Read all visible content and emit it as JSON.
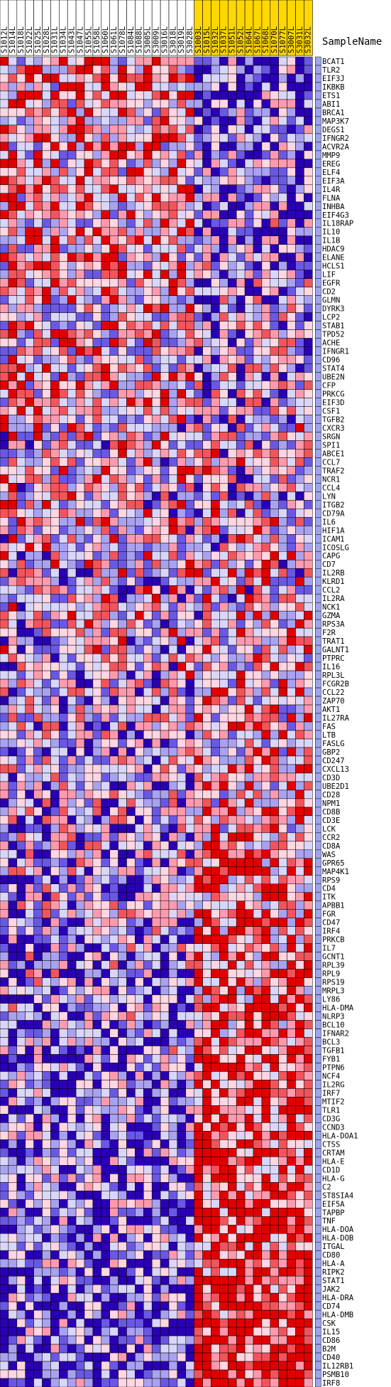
{
  "chart_data": {
    "type": "heatmap",
    "corner_label": "SampleName",
    "columns": [
      {
        "name": "S1012L",
        "group": "white"
      },
      {
        "name": "S1014L",
        "group": "white"
      },
      {
        "name": "S1018L",
        "group": "white"
      },
      {
        "name": "S1022L",
        "group": "white"
      },
      {
        "name": "S1025L",
        "group": "white"
      },
      {
        "name": "S1028L",
        "group": "white"
      },
      {
        "name": "S1031L",
        "group": "white"
      },
      {
        "name": "S1034L",
        "group": "white"
      },
      {
        "name": "S1043L",
        "group": "white"
      },
      {
        "name": "S1047L",
        "group": "white"
      },
      {
        "name": "S1055L",
        "group": "white"
      },
      {
        "name": "S1058L",
        "group": "white"
      },
      {
        "name": "S1060L",
        "group": "white"
      },
      {
        "name": "S1061L",
        "group": "white"
      },
      {
        "name": "S1078L",
        "group": "white"
      },
      {
        "name": "S1084L",
        "group": "white"
      },
      {
        "name": "S1088L",
        "group": "white"
      },
      {
        "name": "S3005L",
        "group": "white"
      },
      {
        "name": "S3009L",
        "group": "white"
      },
      {
        "name": "S3016L",
        "group": "white"
      },
      {
        "name": "S3018L",
        "group": "white"
      },
      {
        "name": "S3019L",
        "group": "white"
      },
      {
        "name": "S3028L",
        "group": "white"
      },
      {
        "name": "S1003L",
        "group": "gold"
      },
      {
        "name": "S1015L",
        "group": "gold"
      },
      {
        "name": "S1032L",
        "group": "gold"
      },
      {
        "name": "S1037L",
        "group": "gold"
      },
      {
        "name": "S1051L",
        "group": "gold"
      },
      {
        "name": "S1052L",
        "group": "gold"
      },
      {
        "name": "S1064L",
        "group": "gold"
      },
      {
        "name": "S1067L",
        "group": "gold"
      },
      {
        "name": "S1068L",
        "group": "gold"
      },
      {
        "name": "S1070L",
        "group": "gold"
      },
      {
        "name": "S1077L",
        "group": "gold"
      },
      {
        "name": "S3007L",
        "group": "gold"
      },
      {
        "name": "S3031L",
        "group": "gold"
      },
      {
        "name": "S3032L",
        "group": "gold"
      }
    ],
    "rows": [
      "BCAT1",
      "TLR2",
      "EIF3J",
      "IKBKB",
      "ETS1",
      "ABI1",
      "BRCA1",
      "MAP3K7",
      "DEGS1",
      "IFNGR2",
      "ACVR2A",
      "MMP9",
      "EREG",
      "ELF4",
      "EIF3A",
      "IL4R",
      "FLNA",
      "INHBA",
      "EIF4G3",
      "IL18RAP",
      "IL10",
      "IL1B",
      "HDAC9",
      "ELANE",
      "HCLS1",
      "LIF",
      "EGFR",
      "CD2",
      "GLMN",
      "DYRK3",
      "LCP2",
      "STAB1",
      "TPD52",
      "ACHE",
      "IFNGR1",
      "CD96",
      "STAT4",
      "UBE2N",
      "CFP",
      "PRKCG",
      "EIF3D",
      "CSF1",
      "TGFB2",
      "CXCR3",
      "SRGN",
      "SPI1",
      "ABCE1",
      "CCL7",
      "TRAF2",
      "NCR1",
      "CCL4",
      "LYN",
      "ITGB2",
      "CD79A",
      "IL6",
      "HIF1A",
      "ICAM1",
      "ICOSLG",
      "CAPG",
      "CD7",
      "IL2RB",
      "KLRD1",
      "CCL2",
      "IL2RA",
      "NCK1",
      "GZMA",
      "RPS3A",
      "F2R",
      "TRAT1",
      "GALNT1",
      "PTPRC",
      "IL16",
      "RPL3L",
      "FCGR2B",
      "CCL22",
      "ZAP70",
      "AKT1",
      "IL27RA",
      "FAS",
      "LTB",
      "FASLG",
      "GBP2",
      "CD247",
      "CXCL13",
      "CD3D",
      "UBE2D1",
      "CD28",
      "NPM1",
      "CD8B",
      "CD3E",
      "LCK",
      "CCR2",
      "CD8A",
      "WAS",
      "GPR65",
      "MAP4K1",
      "RPS9",
      "CD4",
      "ITK",
      "APBB1",
      "FGR",
      "CD47",
      "IRF4",
      "PRKCB",
      "IL7",
      "GCNT1",
      "RPL39",
      "RPL9",
      "RPS19",
      "MRPL3",
      "LY86",
      "HLA-DMA",
      "NLRP3",
      "BCL10",
      "IFNAR2",
      "BCL3",
      "TGFB1",
      "FYB1",
      "PTPN6",
      "NCF4",
      "IL2RG",
      "IRF7",
      "MTIF2",
      "TLR1",
      "CD3G",
      "CCND3",
      "HLA-DOA1",
      "CTSS",
      "CRTAM",
      "HLA-E",
      "CD1D",
      "HLA-G",
      "C2",
      "ST8SIA4",
      "EIF5A",
      "TAPBP",
      "TNF",
      "HLA-DOA",
      "HLA-DOB",
      "ITGAL",
      "CD80",
      "HLA-A",
      "RIPK2",
      "STAT1",
      "JAK2",
      "HLA-DRA",
      "CD74",
      "HLA-DMB",
      "CSK",
      "IL15",
      "CD86",
      "B2M",
      "CD40",
      "IL12RB1",
      "PSMB10",
      "IRF8"
    ],
    "color_scale": [
      "#2a00b4",
      "#6a58e4",
      "#a9a2f0",
      "#d9d6fa",
      "#ffd6e2",
      "#ff9aae",
      "#f2545c",
      "#e00000"
    ],
    "group_colors": {
      "white": "#ffffff",
      "gold": "#ffd700"
    },
    "cell_border": "#000000",
    "side_strip": "#9ea4f0"
  }
}
